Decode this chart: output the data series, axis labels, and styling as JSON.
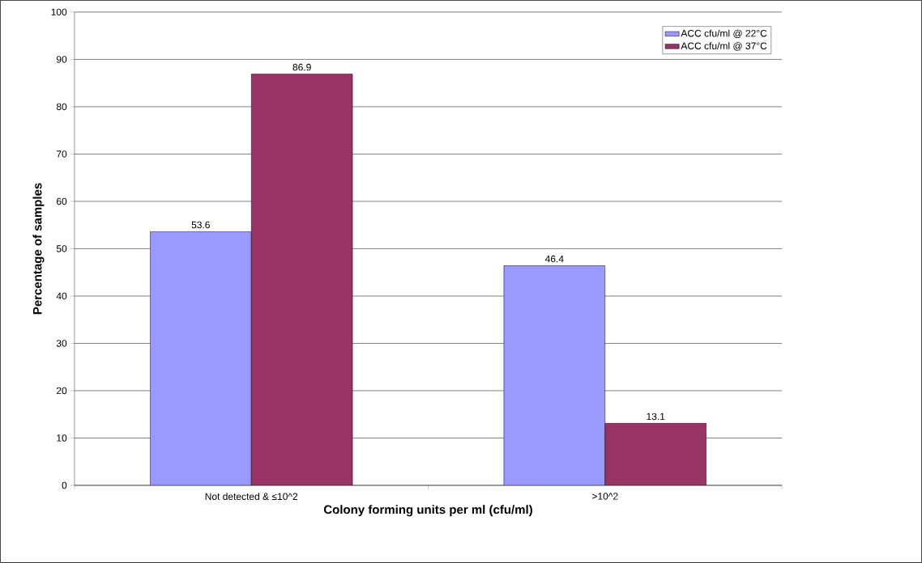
{
  "chart_data": {
    "type": "bar",
    "xlabel": "Colony forming units per ml (cfu/ml)",
    "ylabel": "Percentage of samples",
    "categories": [
      "Not detected & ≤10^2",
      ">10^2"
    ],
    "series": [
      {
        "name": "ACC cfu/ml @ 22°C",
        "color": "#9999ff",
        "values": [
          53.6,
          46.4
        ]
      },
      {
        "name": "ACC cfu/ml @ 37°C",
        "color": "#993366",
        "values": [
          86.9,
          13.1
        ]
      }
    ],
    "ylim": [
      0,
      100
    ],
    "yticks": [
      0,
      10,
      20,
      30,
      40,
      50,
      60,
      70,
      80,
      90,
      100
    ],
    "grid": "y",
    "legend": "top right",
    "data_labels": true
  }
}
